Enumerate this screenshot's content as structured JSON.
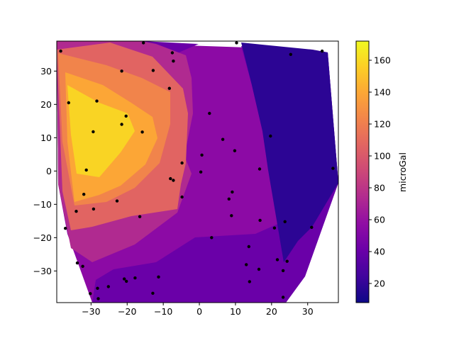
{
  "chart_data": {
    "type": "contourf",
    "title": "",
    "xlabel": "",
    "ylabel": "",
    "xlim": [
      -39.5,
      38.5
    ],
    "ylim": [
      -39.5,
      39.0
    ],
    "xticks": [
      -30,
      -20,
      -10,
      0,
      10,
      20,
      30
    ],
    "yticks": [
      -30,
      -20,
      -10,
      0,
      10,
      20,
      30
    ],
    "colorbar": {
      "label": "microGal",
      "range": [
        8,
        172
      ],
      "ticks": [
        20,
        40,
        60,
        80,
        100,
        120,
        140,
        160
      ],
      "colormap": "plasma"
    },
    "levels": [
      {
        "range": [
          8,
          24
        ],
        "color": "#2c0594"
      },
      {
        "range": [
          24,
          40
        ],
        "color": "#5c01a6"
      },
      {
        "range": [
          40,
          56
        ],
        "color": "#6a00a8"
      },
      {
        "range": [
          56,
          72
        ],
        "color": "#8c0aa5"
      },
      {
        "range": [
          72,
          88
        ],
        "color": "#b02a90"
      },
      {
        "range": [
          88,
          104
        ],
        "color": "#cc4778"
      },
      {
        "range": [
          104,
          120
        ],
        "color": "#e16462"
      },
      {
        "range": [
          120,
          140
        ],
        "color": "#f1844b"
      },
      {
        "range": [
          140,
          156
        ],
        "color": "#fca636"
      },
      {
        "range": [
          156,
          172
        ],
        "color": "#f9d424"
      }
    ],
    "points": [
      [
        -38.4,
        36.0
      ],
      [
        -15.5,
        38.5
      ],
      [
        -7.5,
        35.5
      ],
      [
        -7.2,
        33.0
      ],
      [
        -21.5,
        30.0
      ],
      [
        -12.8,
        30.2
      ],
      [
        -8.3,
        24.8
      ],
      [
        -36.2,
        20.5
      ],
      [
        -28.4,
        21.0
      ],
      [
        -20.3,
        16.5
      ],
      [
        -21.5,
        14.0
      ],
      [
        -29.4,
        11.8
      ],
      [
        -15.8,
        11.7
      ],
      [
        -4.8,
        2.4
      ],
      [
        -31.3,
        0.3
      ],
      [
        0.4,
        -0.3
      ],
      [
        0.7,
        4.8
      ],
      [
        6.5,
        9.5
      ],
      [
        9.8,
        6.1
      ],
      [
        2.8,
        17.3
      ],
      [
        19.7,
        10.5
      ],
      [
        16.7,
        0.6
      ],
      [
        10.3,
        38.5
      ],
      [
        25.3,
        35.0
      ],
      [
        34.0,
        36.0
      ],
      [
        37.0,
        0.8
      ],
      [
        -8.0,
        -2.3
      ],
      [
        -7.2,
        -2.8
      ],
      [
        -4.8,
        -7.8
      ],
      [
        -32.0,
        -7.0
      ],
      [
        -22.8,
        -9.0
      ],
      [
        -34.1,
        -12.1
      ],
      [
        -29.3,
        -11.4
      ],
      [
        -16.5,
        -13.7
      ],
      [
        9.1,
        -6.3
      ],
      [
        8.2,
        -8.4
      ],
      [
        8.9,
        -13.4
      ],
      [
        -37.1,
        -17.2
      ],
      [
        3.4,
        -20.0
      ],
      [
        16.8,
        -14.8
      ],
      [
        20.8,
        -17.1
      ],
      [
        23.7,
        -15.2
      ],
      [
        31.1,
        -16.9
      ],
      [
        13.7,
        -22.7
      ],
      [
        -33.8,
        -27.6
      ],
      [
        -32.3,
        -28.6
      ],
      [
        13.0,
        -28.1
      ],
      [
        16.5,
        -29.5
      ],
      [
        21.6,
        -26.6
      ],
      [
        24.3,
        -27.1
      ],
      [
        23.2,
        -29.9
      ],
      [
        -20.8,
        -32.4
      ],
      [
        -20.2,
        -33.1
      ],
      [
        -17.8,
        -32.1
      ],
      [
        -11.3,
        -31.8
      ],
      [
        13.9,
        -33.2
      ],
      [
        -25.2,
        -34.7
      ],
      [
        -28.2,
        -35.2
      ],
      [
        -30.2,
        -36.8
      ],
      [
        -12.9,
        -36.7
      ],
      [
        -28.0,
        -38.3
      ],
      [
        23.2,
        -37.9
      ]
    ]
  }
}
